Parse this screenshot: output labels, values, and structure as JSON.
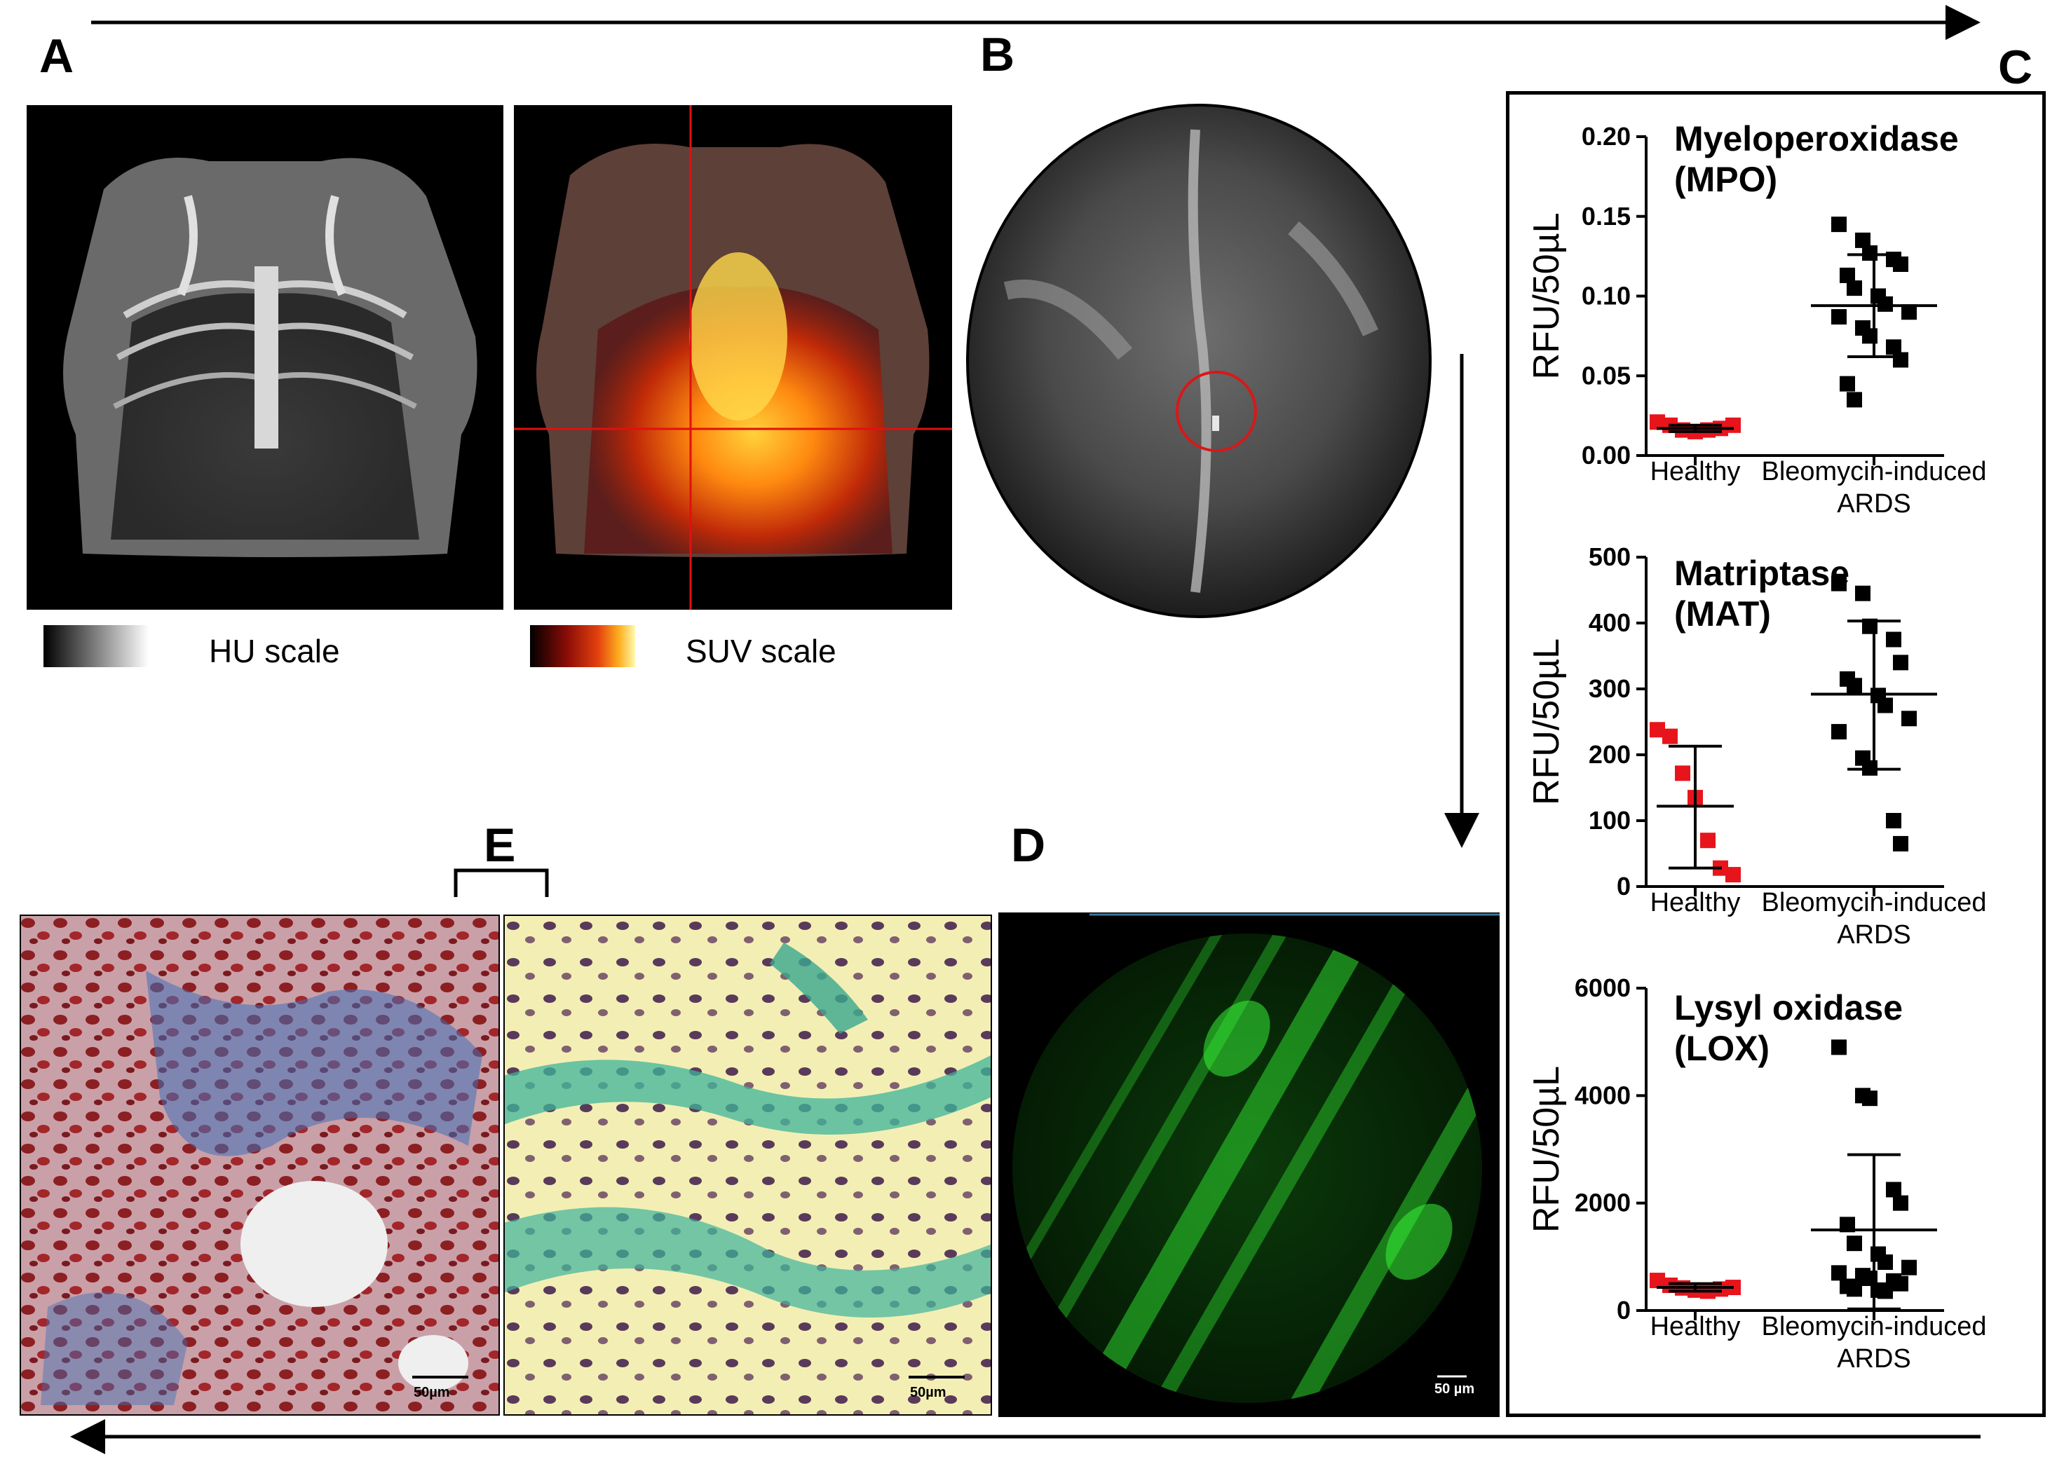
{
  "panels": {
    "A": "A",
    "B": "B",
    "C": "C",
    "D": "D",
    "E": "E"
  },
  "scales": {
    "hu": "HU scale",
    "suv": "SUV scale"
  },
  "scalebars": {
    "e_left": "50µm",
    "e_right": "50µm",
    "d": "50 µm"
  },
  "colors": {
    "healthy": "#e8141c",
    "ards": "#000000"
  },
  "chart_data": [
    {
      "type": "scatter",
      "title": "Myeloperoxidase\n(MPO)",
      "title_lines": [
        "Myeloperoxidase",
        "(MPO)"
      ],
      "ylabel": "RFU/50µL",
      "ylim": [
        0,
        0.2
      ],
      "yticks": [
        "0.00",
        "0.05",
        "0.10",
        "0.15",
        "0.20"
      ],
      "ytick_values": [
        0,
        0.05,
        0.1,
        0.15,
        0.2
      ],
      "categories": [
        "Healthy",
        "Bleomycin-induced\nARDS"
      ],
      "category_lines": [
        [
          "Healthy"
        ],
        [
          "Bleomycin-induced",
          "ARDS"
        ]
      ],
      "series": [
        {
          "name": "Healthy",
          "values": [
            0.021,
            0.019,
            0.016,
            0.015,
            0.016,
            0.017,
            0.019
          ],
          "mean": 0.017,
          "sd_low": 0.015,
          "sd_high": 0.019
        },
        {
          "name": "Bleomycin-induced\nARDS",
          "values": [
            0.145,
            0.135,
            0.127,
            0.123,
            0.12,
            0.113,
            0.105,
            0.1,
            0.095,
            0.09,
            0.087,
            0.08,
            0.075,
            0.068,
            0.06,
            0.045,
            0.035
          ],
          "mean": 0.094,
          "sd_low": 0.062,
          "sd_high": 0.126
        }
      ]
    },
    {
      "type": "scatter",
      "title": "Matriptase\n(MAT)",
      "title_lines": [
        "Matriptase",
        "(MAT)"
      ],
      "ylabel": "RFU/50µL",
      "ylim": [
        0,
        500
      ],
      "yticks": [
        "0",
        "100",
        "200",
        "300",
        "400",
        "500"
      ],
      "ytick_values": [
        0,
        100,
        200,
        300,
        400,
        500
      ],
      "categories": [
        "Healthy",
        "Bleomycin-induced\nARDS"
      ],
      "category_lines": [
        [
          "Healthy"
        ],
        [
          "Bleomycin-induced",
          "ARDS"
        ]
      ],
      "series": [
        {
          "name": "Healthy",
          "values": [
            238,
            228,
            172,
            135,
            70,
            28,
            18
          ],
          "mean": 122,
          "sd_low": 28,
          "sd_high": 213
        },
        {
          "name": "Bleomycin-induced\nARDS",
          "values": [
            460,
            445,
            395,
            375,
            340,
            315,
            305,
            290,
            275,
            255,
            235,
            195,
            180,
            100,
            65
          ],
          "mean": 292,
          "sd_low": 178,
          "sd_high": 403
        }
      ]
    },
    {
      "type": "scatter",
      "title": "Lysyl oxidase\n(LOX)",
      "title_lines": [
        "Lysyl oxidase",
        "(LOX)"
      ],
      "ylabel": "RFU/50µL",
      "ylim": [
        0,
        6000
      ],
      "yticks": [
        "0",
        "2000",
        "4000",
        "6000"
      ],
      "ytick_values": [
        0,
        2000,
        4000,
        6000
      ],
      "categories": [
        "Healthy",
        "Bleomycin-induced\nARDS"
      ],
      "category_lines": [
        [
          "Healthy"
        ],
        [
          "Bleomycin-induced",
          "ARDS"
        ]
      ],
      "series": [
        {
          "name": "Healthy",
          "values": [
            560,
            470,
            420,
            380,
            360,
            400,
            430
          ],
          "mean": 430,
          "sd_low": 360,
          "sd_high": 500
        },
        {
          "name": "Bleomycin-induced\nARDS",
          "values": [
            4900,
            4000,
            3950,
            2250,
            2000,
            1600,
            1250,
            1050,
            900,
            800,
            700,
            650,
            600,
            550,
            500,
            450,
            400,
            380,
            360
          ],
          "mean": 1500,
          "sd_low": 30,
          "sd_high": 2900
        }
      ]
    }
  ]
}
